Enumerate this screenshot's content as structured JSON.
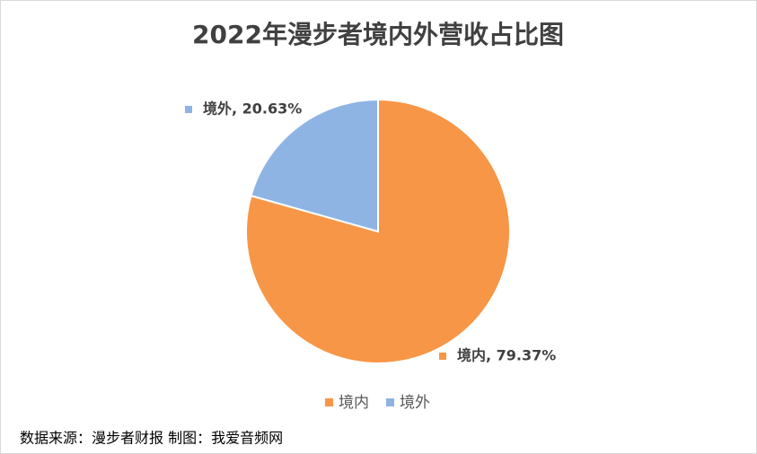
{
  "chart_data": {
    "type": "pie",
    "title": "2022年漫步者境内外营收占比图",
    "categories": [
      "境内",
      "境外"
    ],
    "values": [
      79.37,
      20.63
    ],
    "value_labels": [
      "境内, 79.37%",
      "境外, 20.63%"
    ],
    "colors": [
      "#f79646",
      "#8eb4e3"
    ],
    "legend": "bottom",
    "source": "数据来源：漫步者财报  制图：我爱音频网"
  }
}
